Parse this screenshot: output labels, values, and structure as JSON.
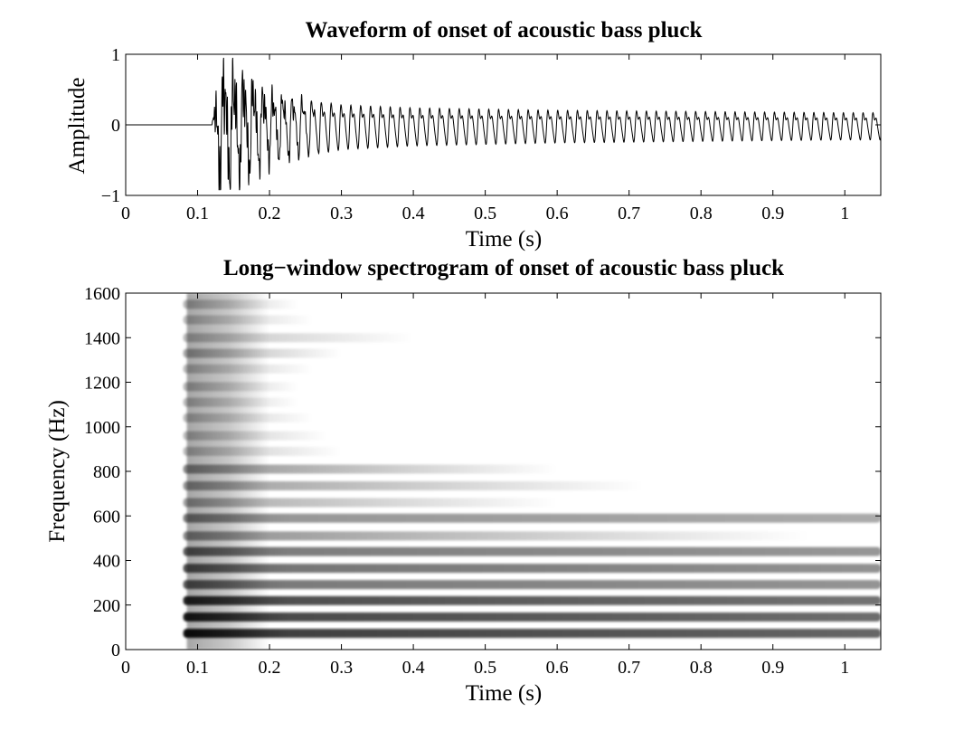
{
  "chart_data": [
    {
      "type": "line",
      "title": "Waveform of onset of acoustic bass pluck",
      "xlabel": "Time (s)",
      "ylabel": "Amplitude",
      "xlim": [
        0,
        1.05
      ],
      "ylim": [
        -1,
        1
      ],
      "x_ticks": [
        0,
        0.1,
        0.2,
        0.3,
        0.4,
        0.5,
        0.6,
        0.7,
        0.8,
        0.9,
        1
      ],
      "x_tick_labels": [
        "0",
        "0.1",
        "0.2",
        "0.3",
        "0.4",
        "0.5",
        "0.6",
        "0.7",
        "0.8",
        "0.9",
        "1"
      ],
      "y_ticks": [
        -1,
        0,
        1
      ],
      "y_tick_labels": [
        "−1",
        "0",
        "1"
      ],
      "grid": false,
      "onset_time": 0.12,
      "fundamental_hz": 73,
      "envelope": {
        "x": [
          0,
          0.12,
          0.13,
          0.16,
          0.2,
          0.26,
          0.3,
          0.4,
          0.5,
          0.6,
          0.7,
          0.8,
          0.9,
          1.0,
          1.05
        ],
        "y": [
          0,
          0,
          0.78,
          0.75,
          0.5,
          0.4,
          0.33,
          0.28,
          0.26,
          0.24,
          0.23,
          0.22,
          0.21,
          0.2,
          0.2
        ]
      },
      "line_color": "#000000"
    },
    {
      "type": "heatmap",
      "title": "Long−window spectrogram of onset of acoustic bass pluck",
      "xlabel": "Time (s)",
      "ylabel": "Frequency (Hz)",
      "xlim": [
        0,
        1.05
      ],
      "ylim": [
        0,
        1600
      ],
      "x_ticks": [
        0,
        0.1,
        0.2,
        0.3,
        0.4,
        0.5,
        0.6,
        0.7,
        0.8,
        0.9,
        1
      ],
      "x_tick_labels": [
        "0",
        "0.1",
        "0.2",
        "0.3",
        "0.4",
        "0.5",
        "0.6",
        "0.7",
        "0.8",
        "0.9",
        "1"
      ],
      "y_ticks": [
        0,
        200,
        400,
        600,
        800,
        1000,
        1200,
        1400,
        1600
      ],
      "y_tick_labels": [
        "0",
        "200",
        "400",
        "600",
        "800",
        "1000",
        "1200",
        "1400",
        "1600"
      ],
      "grid": false,
      "colormap": "gray_reversed",
      "onset_time": 0.08,
      "harmonics": [
        {
          "freq_hz": 73,
          "level": 1.0,
          "decay_end_s": 1.05
        },
        {
          "freq_hz": 146,
          "level": 0.95,
          "decay_end_s": 1.05
        },
        {
          "freq_hz": 220,
          "level": 0.92,
          "decay_end_s": 1.05
        },
        {
          "freq_hz": 292,
          "level": 0.7,
          "decay_end_s": 1.05
        },
        {
          "freq_hz": 365,
          "level": 0.72,
          "decay_end_s": 1.05
        },
        {
          "freq_hz": 440,
          "level": 0.68,
          "decay_end_s": 1.05
        },
        {
          "freq_hz": 510,
          "level": 0.5,
          "decay_end_s": 0.95
        },
        {
          "freq_hz": 590,
          "level": 0.55,
          "decay_end_s": 1.05
        },
        {
          "freq_hz": 660,
          "level": 0.4,
          "decay_end_s": 0.6
        },
        {
          "freq_hz": 735,
          "level": 0.45,
          "decay_end_s": 0.72
        },
        {
          "freq_hz": 810,
          "level": 0.5,
          "decay_end_s": 0.6
        },
        {
          "freq_hz": 890,
          "level": 0.3,
          "decay_end_s": 0.3
        },
        {
          "freq_hz": 960,
          "level": 0.3,
          "decay_end_s": 0.28
        },
        {
          "freq_hz": 1040,
          "level": 0.3,
          "decay_end_s": 0.26
        },
        {
          "freq_hz": 1110,
          "level": 0.3,
          "decay_end_s": 0.24
        },
        {
          "freq_hz": 1180,
          "level": 0.32,
          "decay_end_s": 0.24
        },
        {
          "freq_hz": 1260,
          "level": 0.3,
          "decay_end_s": 0.26
        },
        {
          "freq_hz": 1330,
          "level": 0.38,
          "decay_end_s": 0.3
        },
        {
          "freq_hz": 1400,
          "level": 0.3,
          "decay_end_s": 0.4
        },
        {
          "freq_hz": 1480,
          "level": 0.28,
          "decay_end_s": 0.26
        },
        {
          "freq_hz": 1550,
          "level": 0.32,
          "decay_end_s": 0.24
        }
      ]
    }
  ]
}
